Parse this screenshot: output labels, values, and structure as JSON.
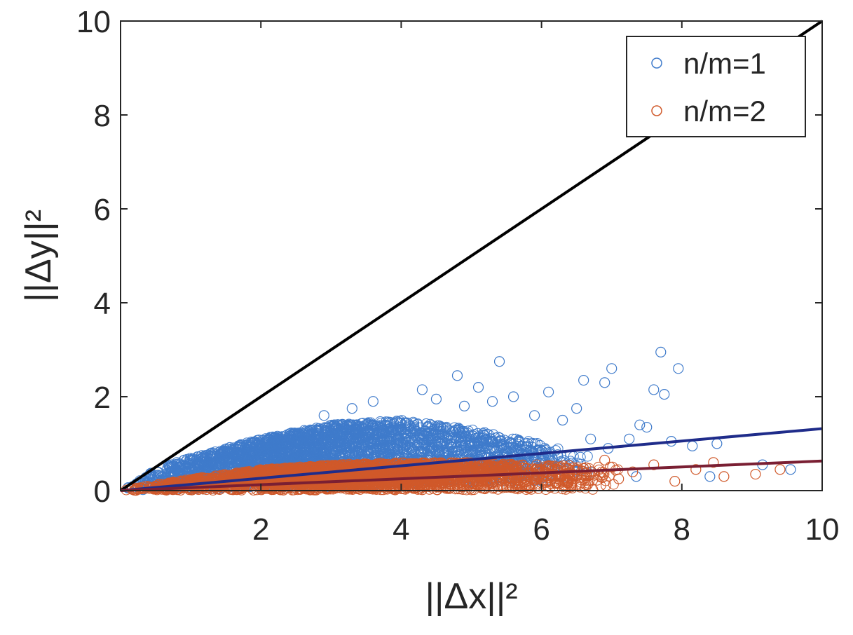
{
  "chart_data": {
    "type": "scatter",
    "title": "",
    "xlabel": "||Δx||²",
    "ylabel": "||Δy||²",
    "xlim": [
      0,
      10
    ],
    "ylim": [
      0,
      10
    ],
    "xticks": [
      2,
      4,
      6,
      8,
      10
    ],
    "yticks": [
      0,
      2,
      4,
      6,
      8,
      10
    ],
    "grid": false,
    "legend_position": "top-right",
    "marker": "open-circle",
    "series": [
      {
        "name": "n/m=1",
        "color": "#3f7bcb",
        "fit_slope": 0.132,
        "points": [
          [
            7.7,
            2.95
          ],
          [
            5.4,
            2.75
          ],
          [
            7.0,
            2.6
          ],
          [
            7.95,
            2.6
          ],
          [
            4.8,
            2.45
          ],
          [
            6.6,
            2.35
          ],
          [
            6.9,
            2.3
          ],
          [
            4.3,
            2.15
          ],
          [
            7.6,
            2.15
          ],
          [
            7.75,
            2.05
          ],
          [
            5.6,
            2.0
          ],
          [
            6.1,
            2.1
          ],
          [
            5.1,
            2.2
          ],
          [
            7.4,
            1.4
          ],
          [
            7.5,
            1.35
          ],
          [
            6.5,
            1.75
          ],
          [
            7.25,
            1.1
          ],
          [
            8.15,
            0.95
          ],
          [
            8.5,
            1.0
          ],
          [
            9.55,
            0.45
          ],
          [
            9.15,
            0.55
          ],
          [
            8.4,
            0.3
          ],
          [
            7.35,
            0.3
          ],
          [
            6.95,
            0.9
          ],
          [
            6.7,
            1.1
          ],
          [
            6.3,
            1.5
          ],
          [
            5.9,
            1.6
          ],
          [
            4.9,
            1.8
          ],
          [
            3.6,
            1.9
          ],
          [
            3.3,
            1.75
          ],
          [
            2.9,
            1.6
          ],
          [
            4.5,
            1.95
          ],
          [
            5.3,
            1.9
          ],
          [
            7.85,
            1.05
          ]
        ],
        "cloud": {
          "count": 3400,
          "x_range": [
            0.05,
            6.8
          ],
          "x_mode": 2.5,
          "y_upper": [
            [
              0,
              0
            ],
            [
              0.5,
              0.45
            ],
            [
              1.0,
              0.7
            ],
            [
              2.0,
              1.1
            ],
            [
              3.0,
              1.4
            ],
            [
              4.0,
              1.5
            ],
            [
              5.0,
              1.3
            ],
            [
              6.0,
              1.0
            ],
            [
              6.8,
              0.7
            ]
          ],
          "y_lower": [
            [
              0,
              0
            ],
            [
              2.0,
              0.05
            ],
            [
              4.0,
              0.1
            ],
            [
              6.0,
              0.2
            ],
            [
              6.8,
              0.3
            ]
          ]
        }
      },
      {
        "name": "n/m=2",
        "color": "#d0592a",
        "fit_slope": 0.063,
        "points": [
          [
            8.6,
            0.3
          ],
          [
            9.05,
            0.35
          ],
          [
            9.4,
            0.45
          ],
          [
            8.2,
            0.45
          ],
          [
            7.9,
            0.2
          ],
          [
            7.6,
            0.55
          ],
          [
            8.45,
            0.6
          ],
          [
            7.3,
            0.4
          ],
          [
            6.9,
            0.65
          ],
          [
            7.1,
            0.25
          ]
        ],
        "cloud": {
          "count": 3000,
          "x_range": [
            0.05,
            7.2
          ],
          "x_mode": 3.0,
          "y_upper": [
            [
              0,
              0
            ],
            [
              1.0,
              0.25
            ],
            [
              2.0,
              0.45
            ],
            [
              3.0,
              0.55
            ],
            [
              4.0,
              0.6
            ],
            [
              5.0,
              0.6
            ],
            [
              6.0,
              0.55
            ],
            [
              7.2,
              0.5
            ]
          ],
          "y_lower": [
            [
              0,
              0
            ],
            [
              7.2,
              0.02
            ]
          ]
        }
      }
    ],
    "reference_lines": [
      {
        "name": "identity",
        "color": "#000000",
        "slope": 1.0
      },
      {
        "name": "fit-n/m=1",
        "color": "#1f2c8a",
        "slope": 0.132
      },
      {
        "name": "fit-n/m=2",
        "color": "#7a1f33",
        "slope": 0.063
      }
    ]
  }
}
